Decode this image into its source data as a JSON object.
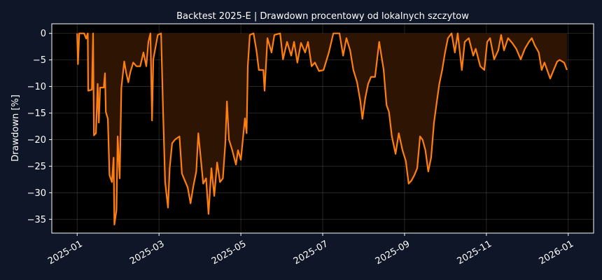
{
  "chart_data": {
    "type": "line",
    "title": "Backtest 2025-E | Drawdown procentowy od lokalnych szczytow",
    "y_label": "Drawdown [%]",
    "color": "#ff7f0e",
    "fill_color": "#2e1503",
    "grid": true,
    "x": [
      0,
      0.02,
      0.05,
      0.17,
      0.22,
      0.26,
      0.27,
      0.36,
      0.39,
      0.41,
      0.46,
      0.5,
      0.53,
      0.56,
      0.65,
      0.68,
      0.7,
      0.75,
      0.79,
      0.85,
      0.89,
      0.91,
      0.96,
      0.99,
      1.04,
      1.08,
      1.15,
      1.2,
      1.25,
      1.3,
      1.37,
      1.45,
      1.54,
      1.62,
      1.69,
      1.74,
      1.79,
      1.83,
      1.86,
      1.97,
      2.05,
      2.1,
      2.15,
      2.22,
      2.26,
      2.32,
      2.39,
      2.5,
      2.56,
      2.63,
      2.7,
      2.77,
      2.84,
      2.91,
      2.96,
      3.01,
      3.08,
      3.15,
      3.21,
      3.28,
      3.35,
      3.42,
      3.49,
      3.56,
      3.62,
      3.66,
      3.71,
      3.79,
      3.88,
      3.93,
      4.0,
      4.1,
      4.14,
      4.17,
      4.22,
      4.31,
      4.38,
      4.44,
      4.55,
      4.58,
      4.65,
      4.75,
      4.82,
      4.96,
      5.03,
      5.13,
      5.23,
      5.3,
      5.38,
      5.47,
      5.57,
      5.64,
      5.73,
      5.81,
      5.91,
      6.02,
      6.15,
      6.26,
      6.41,
      6.5,
      6.58,
      6.67,
      6.75,
      6.84,
      6.92,
      6.97,
      7.04,
      7.11,
      7.18,
      7.28,
      7.38,
      7.49,
      7.56,
      7.62,
      7.69,
      7.78,
      7.86,
      7.95,
      8.03,
      8.1,
      8.17,
      8.24,
      8.31,
      8.38,
      8.44,
      8.51,
      8.58,
      8.65,
      8.72,
      8.79,
      8.85,
      8.92,
      8.99,
      9.06,
      9.15,
      9.23,
      9.3,
      9.4,
      9.47,
      9.57,
      9.68,
      9.74,
      9.85,
      9.95,
      10.02,
      10.09,
      10.19,
      10.29,
      10.36,
      10.43,
      10.53,
      10.63,
      10.73,
      10.84,
      10.94,
      11.04,
      11.11,
      11.18,
      11.28,
      11.35,
      11.42,
      11.56,
      11.66,
      11.73,
      11.79,
      11.9,
      11.97
    ],
    "values": [
      0,
      -5.8,
      0,
      0,
      -1,
      0,
      -10.8,
      -10.6,
      0,
      -19.2,
      -18.8,
      -9.5,
      -16.8,
      -10.2,
      -10.2,
      -7.5,
      -14.8,
      -16.1,
      -26.7,
      -28,
      -23.4,
      -36,
      -33.3,
      -19.4,
      -27.3,
      -10.2,
      -5.3,
      -7.5,
      -9.2,
      -7.3,
      -5.5,
      -6.2,
      -6.2,
      -3.6,
      -6.2,
      -1.6,
      0,
      -16.4,
      -4.9,
      -0.3,
      0,
      -14.8,
      -28,
      -32.8,
      -25.4,
      -20.7,
      -20,
      -19.4,
      -26.4,
      -27.7,
      -29,
      -32,
      -28.7,
      -26,
      -18.8,
      -22.7,
      -28.3,
      -27.3,
      -34,
      -25.4,
      -30.6,
      -24.3,
      -28,
      -27.3,
      -20.7,
      -12.8,
      -20,
      -22,
      -24.7,
      -22,
      -23.8,
      -16,
      -18.8,
      -6.2,
      -0.3,
      0,
      -3.2,
      -6.9,
      -6.9,
      -10.8,
      -0.9,
      -3.6,
      -0.3,
      0,
      -4.9,
      -1.6,
      -4.2,
      -1.6,
      -5.5,
      -1.8,
      -3.6,
      -1.6,
      -6.2,
      -5.5,
      -7.1,
      -6.9,
      -3.6,
      0,
      0,
      -4.2,
      -0.9,
      -3.2,
      -6.9,
      -9.2,
      -12.8,
      -16.1,
      -12.2,
      -9.5,
      -8.2,
      -8.2,
      -1.6,
      -6.9,
      -13.5,
      -14.8,
      -19.4,
      -22.7,
      -18.8,
      -22,
      -24,
      -28.3,
      -27.7,
      -26.7,
      -25.4,
      -19.4,
      -20,
      -22,
      -26,
      -23.4,
      -16.8,
      -12.8,
      -9.5,
      -6.9,
      -3.6,
      -0.9,
      0,
      -3.6,
      0,
      -6.9,
      -1.6,
      -0.9,
      -4.2,
      -2.9,
      -6.2,
      -6.9,
      -1.6,
      -0.9,
      -4.9,
      -3.2,
      -0.3,
      -3.2,
      -0.9,
      -1.8,
      -2.9,
      -4.9,
      -2.9,
      -1.6,
      -0.9,
      -2.2,
      -3.6,
      -6.9,
      -5.5,
      -8.5,
      -6.6,
      -5.3,
      -5,
      -5.5,
      -6.9
    ],
    "xlim": [
      -0.62,
      12.62
    ],
    "xticks": [
      {
        "value": 0,
        "label": "2025-01"
      },
      {
        "value": 2,
        "label": "2025-03"
      },
      {
        "value": 4,
        "label": "2025-05"
      },
      {
        "value": 6,
        "label": "2025-07"
      },
      {
        "value": 8,
        "label": "2025-09"
      },
      {
        "value": 10,
        "label": "2025-11"
      },
      {
        "value": 12,
        "label": "2026-01"
      }
    ],
    "ylim": [
      -37.6,
      1.8
    ],
    "yticks": [
      0,
      {
        "value": -5,
        "label": "−5"
      },
      {
        "value": -10,
        "label": "−10"
      },
      {
        "value": -15,
        "label": "−15"
      },
      {
        "value": -20,
        "label": "−20"
      },
      {
        "value": -25,
        "label": "−25"
      },
      {
        "value": -30,
        "label": "−30"
      },
      {
        "value": -35,
        "label": "−35"
      }
    ]
  }
}
